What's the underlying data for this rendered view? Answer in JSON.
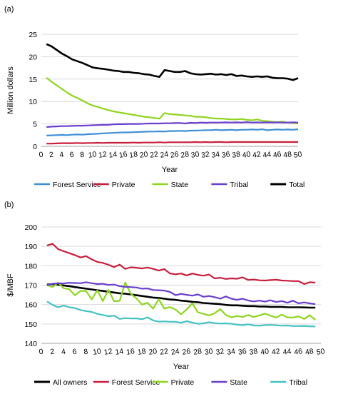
{
  "chart_data": [
    {
      "type": "line",
      "panel_label": "(a)",
      "title": "",
      "xlabel": "Year",
      "ylabel": "Million dollars",
      "xlim": [
        0,
        50
      ],
      "ylim": [
        0,
        25
      ],
      "x_ticks": [
        0,
        2,
        4,
        6,
        8,
        10,
        12,
        14,
        16,
        18,
        20,
        22,
        24,
        26,
        28,
        30,
        32,
        34,
        36,
        38,
        40,
        42,
        44,
        46,
        48,
        50
      ],
      "y_ticks": [
        0,
        5,
        10,
        15,
        20,
        25
      ],
      "grid": "horizontal",
      "legend_position": "bottom",
      "x": [
        1,
        2,
        3,
        4,
        5,
        6,
        7,
        8,
        9,
        10,
        11,
        12,
        13,
        14,
        15,
        16,
        17,
        18,
        19,
        20,
        21,
        22,
        23,
        24,
        25,
        26,
        27,
        28,
        29,
        30,
        31,
        32,
        33,
        34,
        35,
        36,
        37,
        38,
        39,
        40,
        41,
        42,
        43,
        44,
        45,
        46,
        47,
        48,
        49,
        50
      ],
      "series": [
        {
          "name": "Forest Service",
          "color": "#3f8fd6",
          "values": [
            2.4,
            2.45,
            2.5,
            2.55,
            2.5,
            2.6,
            2.65,
            2.6,
            2.7,
            2.75,
            2.8,
            2.9,
            2.95,
            3.0,
            3.05,
            3.1,
            3.1,
            3.15,
            3.2,
            3.25,
            3.3,
            3.3,
            3.35,
            3.3,
            3.4,
            3.4,
            3.45,
            3.4,
            3.5,
            3.5,
            3.55,
            3.6,
            3.6,
            3.7,
            3.6,
            3.65,
            3.7,
            3.6,
            3.7,
            3.7,
            3.75,
            3.7,
            3.8,
            3.6,
            3.7,
            3.75,
            3.7,
            3.75,
            3.7,
            3.8
          ]
        },
        {
          "name": "Private",
          "color": "#c81e3c",
          "values": [
            0.6,
            0.6,
            0.65,
            0.7,
            0.7,
            0.7,
            0.75,
            0.7,
            0.75,
            0.75,
            0.8,
            0.75,
            0.8,
            0.8,
            0.8,
            0.8,
            0.8,
            0.85,
            0.8,
            0.85,
            0.85,
            0.85,
            0.9,
            0.85,
            0.9,
            0.9,
            0.9,
            0.9,
            0.9,
            0.95,
            0.9,
            0.95,
            0.9,
            0.95,
            0.95,
            0.9,
            0.95,
            0.95,
            0.95,
            0.95,
            0.95,
            0.95,
            0.95,
            0.95,
            0.95,
            0.95,
            0.95,
            0.95,
            0.95,
            0.95
          ]
        },
        {
          "name": "State",
          "color": "#8ed51f",
          "values": [
            15.3,
            14.4,
            13.6,
            12.8,
            12.0,
            11.3,
            10.8,
            10.2,
            9.6,
            9.1,
            8.8,
            8.4,
            8.1,
            7.8,
            7.6,
            7.4,
            7.2,
            7.0,
            6.8,
            6.6,
            6.5,
            6.3,
            6.2,
            7.4,
            7.2,
            7.1,
            7.0,
            6.9,
            6.8,
            6.6,
            6.6,
            6.5,
            6.3,
            6.2,
            6.2,
            6.1,
            6.0,
            6.0,
            6.1,
            5.9,
            5.8,
            6.0,
            5.7,
            5.6,
            5.5,
            5.4,
            5.5,
            5.3,
            5.2,
            5.1
          ]
        },
        {
          "name": "Tribal",
          "color": "#6a3fcf",
          "values": [
            4.3,
            4.4,
            4.45,
            4.5,
            4.5,
            4.55,
            4.6,
            4.6,
            4.65,
            4.7,
            4.75,
            4.8,
            4.8,
            4.9,
            4.95,
            4.95,
            5.0,
            5.0,
            5.0,
            5.05,
            5.1,
            5.1,
            5.1,
            5.15,
            5.15,
            5.2,
            5.2,
            5.1,
            5.25,
            5.2,
            5.3,
            5.25,
            5.3,
            5.3,
            5.3,
            5.35,
            5.3,
            5.35,
            5.3,
            5.4,
            5.3,
            5.35,
            5.3,
            5.35,
            5.3,
            5.35,
            5.3,
            5.3,
            5.35,
            5.3
          ]
        },
        {
          "name": "Total",
          "color": "#000000",
          "values": [
            22.8,
            22.3,
            21.5,
            20.7,
            20.1,
            19.4,
            19.0,
            18.6,
            18.1,
            17.6,
            17.4,
            17.3,
            17.1,
            16.9,
            16.8,
            16.6,
            16.6,
            16.4,
            16.3,
            16.1,
            16.0,
            15.7,
            15.5,
            17.0,
            16.8,
            16.6,
            16.6,
            16.8,
            16.3,
            16.1,
            16.0,
            16.1,
            16.2,
            16.0,
            16.1,
            15.9,
            16.1,
            15.7,
            15.8,
            15.6,
            15.5,
            15.6,
            15.5,
            15.6,
            15.3,
            15.2,
            15.2,
            15.1,
            14.8,
            15.2
          ]
        }
      ]
    },
    {
      "type": "line",
      "panel_label": "(b)",
      "title": "",
      "xlabel": "Year",
      "ylabel": "$/MBF",
      "xlim": [
        0,
        50
      ],
      "ylim": [
        140,
        200
      ],
      "x_ticks": [
        0,
        2,
        4,
        6,
        8,
        10,
        12,
        14,
        16,
        18,
        20,
        22,
        24,
        26,
        28,
        30,
        32,
        34,
        36,
        38,
        40,
        42,
        44,
        46,
        48,
        50
      ],
      "y_ticks": [
        140,
        150,
        160,
        170,
        180,
        190,
        200
      ],
      "grid": "horizontal",
      "legend_position": "bottom",
      "x": [
        1,
        2,
        3,
        4,
        5,
        6,
        7,
        8,
        9,
        10,
        11,
        12,
        13,
        14,
        15,
        16,
        17,
        18,
        19,
        20,
        21,
        22,
        23,
        24,
        25,
        26,
        27,
        28,
        29,
        30,
        31,
        32,
        33,
        34,
        35,
        36,
        37,
        38,
        39,
        40,
        41,
        42,
        43,
        44,
        45,
        46,
        47,
        48,
        49
      ],
      "series": [
        {
          "name": "All owners",
          "color": "#000000",
          "values": [
            170.3,
            170.5,
            170.2,
            169.8,
            169.5,
            169.0,
            168.6,
            168.2,
            167.8,
            167.4,
            167.0,
            166.6,
            166.2,
            165.8,
            165.6,
            165.2,
            164.8,
            164.4,
            164.0,
            163.6,
            163.4,
            163.0,
            162.6,
            162.4,
            162.0,
            161.8,
            161.4,
            161.2,
            160.8,
            160.6,
            160.4,
            160.2,
            159.8,
            159.6,
            159.6,
            159.4,
            159.2,
            159.2,
            159.0,
            159.0,
            158.8,
            158.8,
            158.8,
            158.6,
            158.6,
            158.6,
            158.5,
            158.4,
            158.4
          ]
        },
        {
          "name": "Forest Service",
          "color": "#c81e3c",
          "values": [
            190.4,
            191.3,
            188.6,
            187.5,
            186.5,
            185.5,
            184.3,
            185.0,
            183.3,
            182.0,
            181.5,
            180.5,
            179.3,
            180.6,
            178.4,
            179.2,
            179.0,
            178.6,
            179.1,
            178.4,
            177.5,
            178.3,
            176.0,
            175.6,
            176.0,
            175.0,
            176.0,
            175.3,
            174.9,
            175.5,
            173.5,
            173.8,
            173.2,
            173.5,
            173.3,
            174.0,
            172.7,
            172.9,
            172.5,
            172.4,
            172.6,
            172.8,
            172.4,
            172.3,
            172.1,
            172.1,
            170.6,
            171.5,
            171.3
          ]
        },
        {
          "name": "Private",
          "color": "#8ed51f",
          "values": [
            170.0,
            169.0,
            171.3,
            168.4,
            167.9,
            164.8,
            167.0,
            167.0,
            162.7,
            167.3,
            161.8,
            167.6,
            161.7,
            161.9,
            171.4,
            165.6,
            163.2,
            160.0,
            160.9,
            157.9,
            162.8,
            157.9,
            158.7,
            157.4,
            155.0,
            157.5,
            160.6,
            156.0,
            155.2,
            154.4,
            155.5,
            157.6,
            154.6,
            153.4,
            154.1,
            153.6,
            154.6,
            153.6,
            154.4,
            155.3,
            154.2,
            153.3,
            154.8,
            153.4,
            153.3,
            153.9,
            152.6,
            154.5,
            152.1
          ]
        },
        {
          "name": "State",
          "color": "#6a3fcf",
          "values": [
            170.0,
            170.7,
            171.0,
            170.9,
            171.2,
            171.1,
            171.0,
            171.5,
            171.0,
            170.6,
            170.7,
            170.1,
            170.3,
            169.5,
            169.1,
            169.0,
            168.8,
            168.2,
            168.3,
            167.5,
            167.4,
            167.2,
            166.5,
            164.8,
            165.5,
            165.0,
            164.6,
            165.2,
            164.0,
            164.4,
            163.8,
            163.0,
            164.2,
            163.0,
            162.4,
            163.0,
            162.1,
            161.6,
            162.0,
            161.5,
            162.2,
            161.3,
            161.8,
            160.9,
            162.0,
            160.6,
            161.1,
            160.6,
            160.2
          ]
        },
        {
          "name": "Tribal",
          "color": "#45c2c4",
          "values": [
            161.6,
            159.8,
            158.6,
            159.5,
            158.6,
            158.2,
            157.2,
            156.6,
            156.2,
            155.2,
            154.6,
            154.0,
            154.3,
            152.6,
            153.0,
            152.8,
            152.9,
            152.4,
            153.4,
            151.8,
            151.2,
            151.3,
            151.1,
            151.1,
            150.6,
            151.4,
            150.7,
            150.1,
            150.3,
            150.9,
            150.4,
            150.2,
            150.3,
            150.1,
            149.6,
            149.4,
            149.8,
            149.2,
            149.1,
            149.4,
            149.5,
            149.3,
            149.1,
            149.2,
            148.9,
            148.9,
            149.0,
            148.8,
            148.7
          ]
        }
      ]
    }
  ]
}
